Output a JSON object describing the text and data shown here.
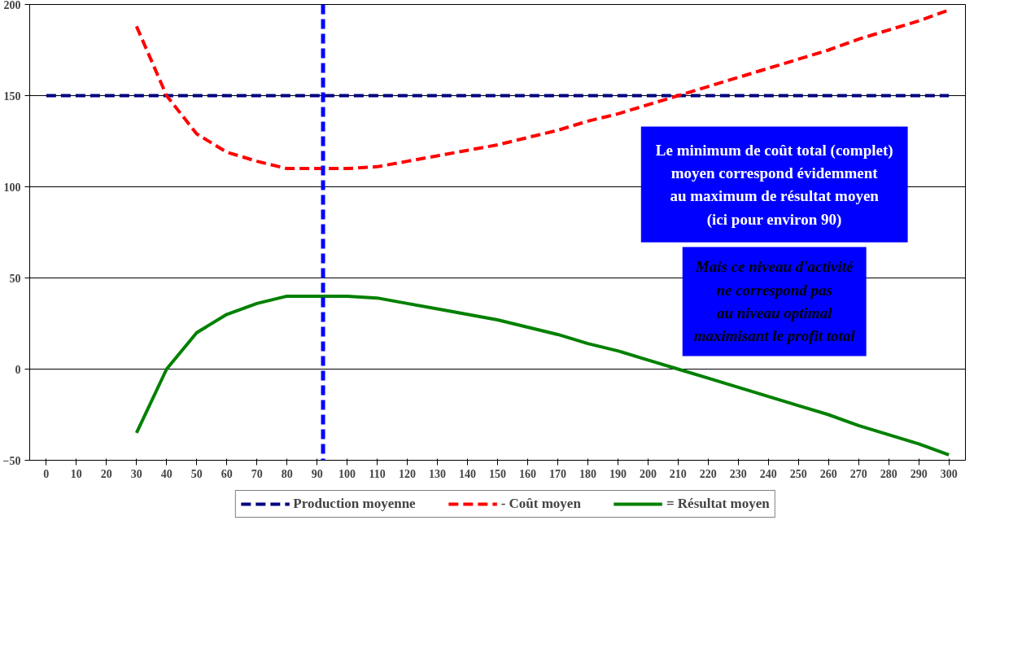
{
  "chart_data": {
    "type": "line",
    "x": [
      0,
      10,
      20,
      30,
      40,
      50,
      60,
      70,
      80,
      90,
      100,
      110,
      120,
      130,
      140,
      150,
      160,
      170,
      180,
      190,
      200,
      210,
      220,
      230,
      240,
      250,
      260,
      270,
      280,
      290,
      300
    ],
    "series": [
      {
        "name": "Production moyenne",
        "color": "#000080",
        "line_style": "dashed",
        "values": [
          150,
          150,
          150,
          150,
          150,
          150,
          150,
          150,
          150,
          150,
          150,
          150,
          150,
          150,
          150,
          150,
          150,
          150,
          150,
          150,
          150,
          150,
          150,
          150,
          150,
          150,
          150,
          150,
          150,
          150,
          150
        ]
      },
      {
        "name": "- Coût moyen",
        "color": "#ff0000",
        "line_style": "dashed",
        "values": [
          null,
          null,
          null,
          188,
          150,
          129,
          119,
          114,
          110,
          110,
          110,
          111,
          114,
          117,
          120,
          123,
          127,
          131,
          136,
          140,
          145,
          150,
          155,
          160,
          165,
          170,
          175,
          181,
          186,
          191,
          197
        ]
      },
      {
        "name": "= Résultat moyen",
        "color": "#008000",
        "line_style": "solid",
        "values": [
          null,
          null,
          null,
          -35,
          0,
          20,
          30,
          36,
          40,
          40,
          40,
          39,
          36,
          33,
          30,
          27,
          23,
          19,
          14,
          10,
          5,
          0,
          -5,
          -10,
          -15,
          -20,
          -25,
          -31,
          -36,
          -41,
          -47
        ]
      }
    ],
    "xlim": [
      -5.5,
      305.5
    ],
    "xticks": [
      0,
      10,
      20,
      30,
      40,
      50,
      60,
      70,
      80,
      90,
      100,
      110,
      120,
      130,
      140,
      150,
      160,
      170,
      180,
      190,
      200,
      210,
      220,
      230,
      240,
      250,
      260,
      270,
      280,
      290,
      300
    ],
    "ylim": [
      -50,
      200
    ],
    "yticks": [
      -50,
      0,
      50,
      100,
      150,
      200
    ],
    "grid": "y",
    "legend": "bottom",
    "marker": "none",
    "ref_lines": [
      {
        "axis": "x",
        "value": 92,
        "color": "#0000ff",
        "line_style": "dashed"
      }
    ],
    "annotations": [
      "Le minimum de coût total (complet)\nmoyen correspond évidemment\nau maximum de résultat moyen\n(ici pour environ 90)",
      "Mais ce niveau d'activité\nne correspond pas\nau niveau optimal\nmaximisant le profit total"
    ]
  }
}
